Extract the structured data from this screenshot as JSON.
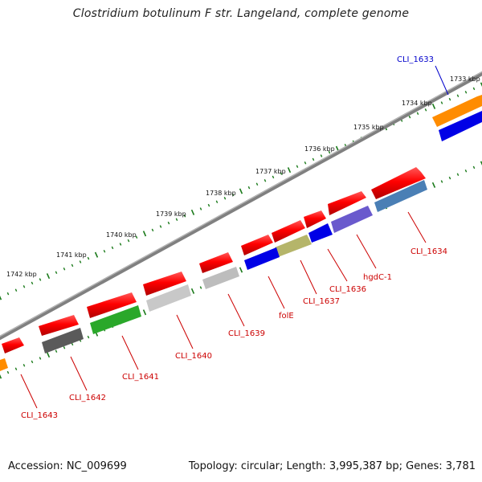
{
  "title": "Clostridium botulinum F str. Langeland, complete genome",
  "footer": {
    "accession": "Accession: NC_009699",
    "summary": "Topology: circular; Length: 3,995,387 bp; Genes: 3,781"
  },
  "colors": {
    "backbone": "#7f7f7f",
    "tick": "#1a7a1a",
    "label_default": "#cc0000",
    "label_highlight": "#0000cc"
  },
  "kbp_labels": [
    "1733 kbp",
    "1734 kbp",
    "1735 kbp",
    "1736 kbp",
    "1737 kbp",
    "1738 kbp",
    "1739 kbp",
    "1740 kbp",
    "1741 kbp",
    "1742 kbp"
  ],
  "genes": [
    {
      "name": "CLI_1633",
      "color": "#0000cc"
    },
    {
      "name": "CLI_1634",
      "color": "#cc0000"
    },
    {
      "name": "hgdC-1",
      "color": "#cc0000"
    },
    {
      "name": "CLI_1636",
      "color": "#cc0000"
    },
    {
      "name": "CLI_1637",
      "color": "#cc0000"
    },
    {
      "name": "folE",
      "color": "#cc0000"
    },
    {
      "name": "CLI_1639",
      "color": "#cc0000"
    },
    {
      "name": "CLI_1640",
      "color": "#cc0000"
    },
    {
      "name": "CLI_1641",
      "color": "#cc0000"
    },
    {
      "name": "CLI_1642",
      "color": "#cc0000"
    },
    {
      "name": "CLI_1643",
      "color": "#cc0000"
    }
  ]
}
